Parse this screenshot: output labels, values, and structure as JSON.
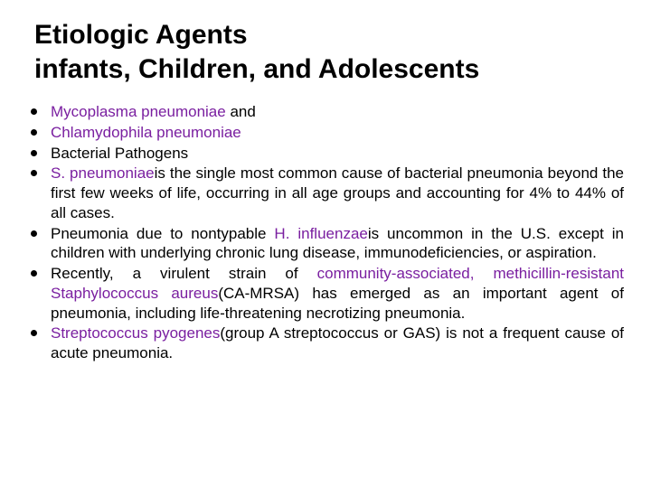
{
  "colors": {
    "text": "#000000",
    "highlight": "#7a1fa0",
    "background": "#ffffff",
    "bullet": "#000000"
  },
  "typography": {
    "title_fontsize": 30,
    "title_weight": "bold",
    "body_fontsize": 17,
    "body_weight": "normal",
    "font_family": "Arial"
  },
  "title_line1": "Etiologic Agents",
  "title_line2": "infants, Children, and Adolescents",
  "bullets": {
    "b0_p0": "Mycoplasma pneumoniae ",
    "b0_p1": "  and",
    "b1_p0": "Chlamydophila pneumoniae",
    "b2_p0": "Bacterial      Pathogens",
    "b3_p0": "S. pneumoniae",
    "b3_p1": "is the single most common cause of bacterial pneumonia beyond the first few weeks of life, occurring in all age groups and accounting for 4% to 44% of all cases.",
    "b4_p0": "Pneumonia due to nontypable ",
    "b4_p1": "H. influenzae",
    "b4_p2": "is uncommon in the U.S. except in children with underlying chronic lung disease, immunodeficiencies, or aspiration.",
    "b5_p0": "Recently, a virulent strain of ",
    "b5_p1": "community-associated, methicillin-resistant Staphylococcus aureus",
    "b5_p2": "(CA-MRSA) ",
    "b5_p3": "has emerged as an important agent of pneumonia, including life-threatening necrotizing pneumonia.",
    "b6_p0": "Streptococcus pyogenes",
    "b6_p1": "(group A streptococcus or GAS) is not a frequent cause of acute pneumonia."
  }
}
